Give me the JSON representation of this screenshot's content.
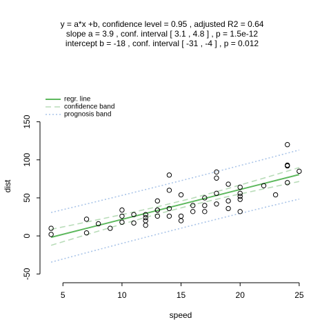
{
  "chart_data": {
    "type": "scatter",
    "title": [
      "y = a*x +b, confidence level =  0.95 , adjusted R2 =  0.64",
      "slope a =  3.9 , conf. interval [ 3.1 , 4.8 ] , p =  1.5e-12",
      "intercept b =  -18 , conf. interval [ -31 , -4 ] , p =  0.012"
    ],
    "xlabel": "speed",
    "ylabel": "dist",
    "xlim": [
      3,
      26
    ],
    "ylim": [
      -57,
      185
    ],
    "xticks": [
      5,
      10,
      15,
      20,
      25
    ],
    "yticks": [
      -50,
      0,
      50,
      100,
      150
    ],
    "points": {
      "x": [
        4,
        4,
        7,
        7,
        8,
        9,
        10,
        10,
        10,
        11,
        11,
        12,
        12,
        12,
        12,
        13,
        13,
        13,
        13,
        14,
        14,
        14,
        14,
        15,
        15,
        15,
        16,
        16,
        17,
        17,
        17,
        18,
        18,
        18,
        18,
        19,
        19,
        19,
        20,
        20,
        20,
        20,
        20,
        22,
        23,
        24,
        24,
        24,
        24,
        25
      ],
      "y": [
        2,
        10,
        4,
        22,
        16,
        10,
        18,
        26,
        34,
        17,
        28,
        14,
        20,
        24,
        28,
        26,
        34,
        34,
        46,
        26,
        36,
        60,
        80,
        20,
        26,
        54,
        32,
        40,
        32,
        40,
        50,
        42,
        56,
        76,
        84,
        36,
        46,
        68,
        32,
        48,
        52,
        56,
        64,
        66,
        54,
        70,
        92,
        93,
        120,
        85
      ]
    },
    "series": [
      {
        "name": "regr. line",
        "color": "#5cb85c",
        "style": "solid",
        "x": [
          4,
          25
        ],
        "values": [
          -1.85,
          80.67
        ]
      },
      {
        "name": "confidence band",
        "color": "#b8dcb8",
        "style": "dashed",
        "x": [
          4,
          7,
          10,
          13,
          16,
          19,
          22,
          25
        ],
        "lower": [
          -12.33,
          1.68,
          15.46,
          28.72,
          40.92,
          51.8,
          61.86,
          71.54
        ],
        "upper": [
          8.63,
          18.22,
          28.02,
          38.34,
          49.72,
          62.42,
          75.94,
          89.8
        ]
      },
      {
        "name": "prognosis band",
        "color": "#a9c4e8",
        "style": "dotted",
        "x": [
          4,
          7,
          10,
          13,
          16,
          19,
          22,
          25
        ],
        "lower": [
          -34.5,
          -22.05,
          -9.81,
          2.24,
          14.09,
          25.74,
          37.2,
          48.43
        ],
        "upper": [
          30.8,
          41.95,
          53.29,
          64.82,
          76.55,
          88.48,
          100.6,
          112.91
        ]
      }
    ],
    "legend": "top-left"
  }
}
